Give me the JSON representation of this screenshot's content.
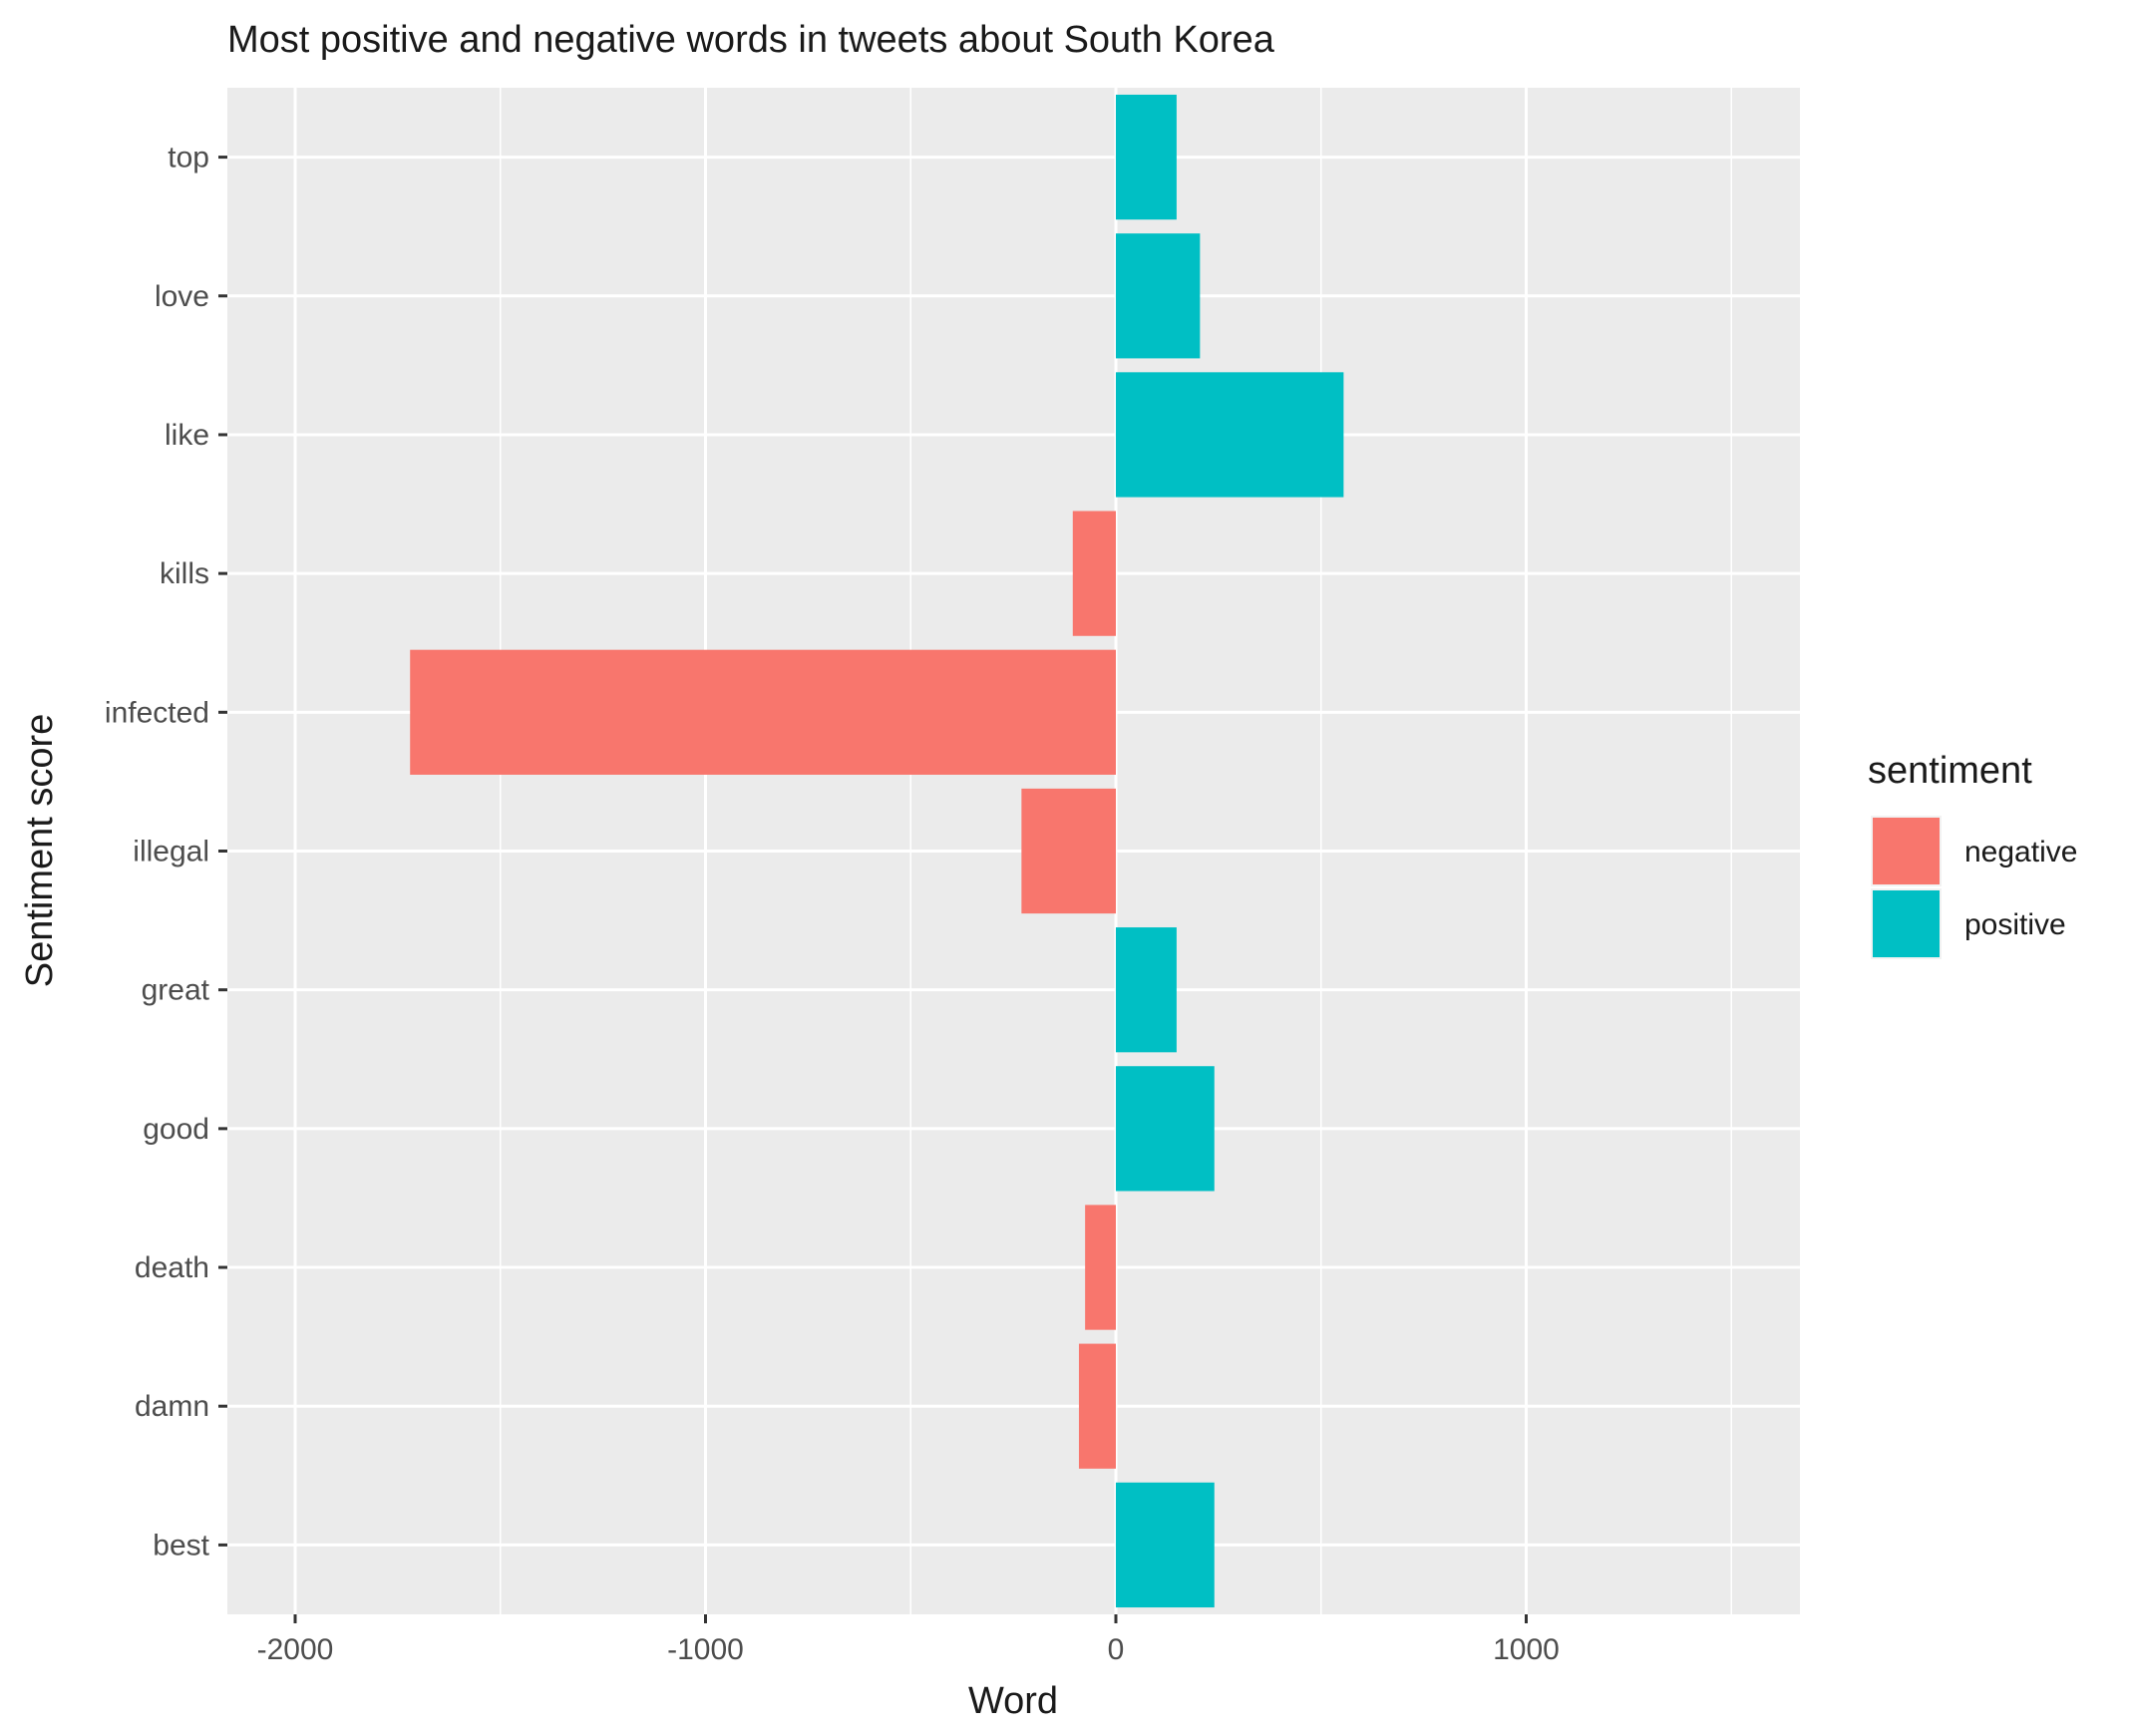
{
  "chart_data": {
    "type": "bar",
    "orientation": "horizontal",
    "title": "Most positive and negative words in tweets about South Korea",
    "xlabel": "Word",
    "ylabel": "Sentiment score",
    "xlim": [
      -2000,
      1600
    ],
    "x_ticks": [
      -2000,
      -1000,
      0,
      1000
    ],
    "x_tick_labels": [
      "-2000",
      "-1000",
      "0",
      "1000"
    ],
    "categories": [
      "best",
      "damn",
      "death",
      "good",
      "great",
      "illegal",
      "infected",
      "kills",
      "like",
      "love",
      "top"
    ],
    "values": [
      240,
      -90,
      -75,
      240,
      148,
      -230,
      -1720,
      -105,
      555,
      205,
      148
    ],
    "sentiment": [
      "positive",
      "negative",
      "negative",
      "positive",
      "positive",
      "negative",
      "negative",
      "negative",
      "positive",
      "positive",
      "positive"
    ],
    "grid": true,
    "legend": {
      "title": "sentiment",
      "position": "right",
      "entries": [
        {
          "label": "negative",
          "color": "#F8766D"
        },
        {
          "label": "positive",
          "color": "#00BFC4"
        }
      ]
    },
    "colors": {
      "negative": "#F8766D",
      "positive": "#00BFC4",
      "panel": "#EBEBEB",
      "grid": "#FFFFFF"
    }
  }
}
